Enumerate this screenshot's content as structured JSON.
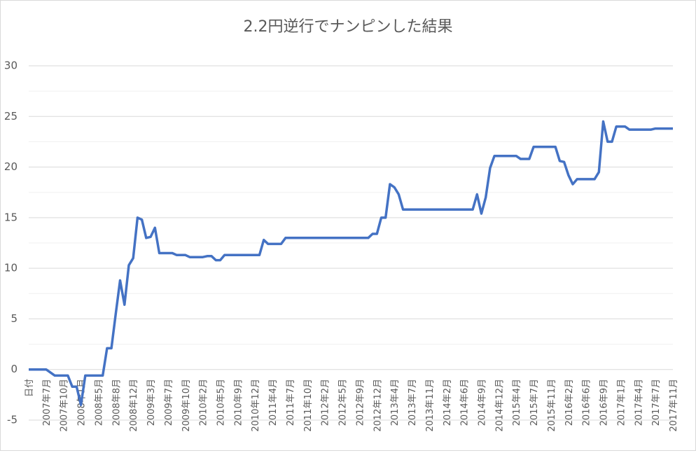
{
  "chart_data": {
    "type": "line",
    "title": "2.2円逆行でナンピンした結果",
    "categories": [
      "日付",
      null,
      null,
      null,
      "2007年7月",
      null,
      null,
      null,
      "2007年10月",
      null,
      null,
      null,
      "2008年1月",
      null,
      null,
      null,
      "2008年5月",
      null,
      null,
      null,
      "2008年8月",
      null,
      null,
      null,
      "2008年12月",
      null,
      null,
      null,
      "2009年3月",
      null,
      null,
      null,
      "2009年7月",
      null,
      null,
      null,
      "2009年10月",
      null,
      null,
      null,
      "2010年2月",
      null,
      null,
      null,
      "2010年5月",
      null,
      null,
      null,
      "2010年9月",
      null,
      null,
      null,
      "2010年12月",
      null,
      null,
      null,
      "2011年4月",
      null,
      null,
      null,
      "2011年7月",
      null,
      null,
      null,
      "2011年10月",
      null,
      null,
      null,
      "2012年2月",
      null,
      null,
      null,
      "2012年5月",
      null,
      null,
      null,
      "2012年9月",
      null,
      null,
      null,
      "2012年12月",
      null,
      null,
      null,
      "2013年4月",
      null,
      null,
      null,
      "2013年7月",
      null,
      null,
      null,
      "2013年11月",
      null,
      null,
      null,
      "2014年2月",
      null,
      null,
      null,
      "2014年6月",
      null,
      null,
      null,
      "2014年9月",
      null,
      null,
      null,
      "2014年12月",
      null,
      null,
      null,
      "2015年4月",
      null,
      null,
      null,
      "2015年7月",
      null,
      null,
      null,
      "2015年11月",
      null,
      null,
      null,
      "2016年2月",
      null,
      null,
      null,
      "2016年6月",
      null,
      null,
      null,
      "2016年9月",
      null,
      null,
      null,
      "2017年1月",
      null,
      null,
      null,
      "2017年4月",
      null,
      null,
      null,
      "2017年7月",
      null,
      null,
      null,
      "2017年11月"
    ],
    "series": [
      {
        "color": "#4472c4",
        "values": [
          0,
          0,
          0,
          0,
          0,
          -0.3,
          -0.6,
          -0.6,
          -0.6,
          -0.6,
          -1.7,
          -1.7,
          -3.5,
          -0.6,
          -0.6,
          -0.6,
          -0.6,
          -0.6,
          2.1,
          2.1,
          5.5,
          8.8,
          6.4,
          10.3,
          11,
          15,
          14.8,
          13,
          13.1,
          14,
          11.5,
          11.5,
          11.5,
          11.5,
          11.3,
          11.3,
          11.3,
          11.1,
          11.1,
          11.1,
          11.1,
          11.2,
          11.2,
          10.8,
          10.8,
          11.3,
          11.3,
          11.3,
          11.3,
          11.3,
          11.3,
          11.3,
          11.3,
          11.3,
          12.8,
          12.4,
          12.4,
          12.4,
          12.4,
          13,
          13,
          13,
          13,
          13,
          13,
          13,
          13,
          13,
          13,
          13,
          13,
          13,
          13,
          13,
          13,
          13,
          13,
          13,
          13,
          13.4,
          13.4,
          15,
          15,
          18.3,
          18,
          17.3,
          15.8,
          15.8,
          15.8,
          15.8,
          15.8,
          15.8,
          15.8,
          15.8,
          15.8,
          15.8,
          15.8,
          15.8,
          15.8,
          15.8,
          15.8,
          15.8,
          15.8,
          17.3,
          15.4,
          17,
          19.9,
          21.1,
          21.1,
          21.1,
          21.1,
          21.1,
          21.1,
          20.8,
          20.8,
          20.8,
          22,
          22,
          22,
          22,
          22,
          22,
          20.6,
          20.5,
          19.2,
          18.3,
          18.8,
          18.8,
          18.8,
          18.8,
          18.8,
          19.5,
          24.5,
          22.5,
          22.5,
          24,
          24,
          24,
          23.7,
          23.7,
          23.7,
          23.7,
          23.7,
          23.7,
          23.8,
          23.8,
          23.8,
          23.8,
          23.8
        ]
      }
    ],
    "ylim": [
      -5,
      30
    ],
    "yticks": [
      -5,
      0,
      5,
      10,
      15,
      20,
      25,
      30
    ],
    "minor_yticks": [
      2.5,
      7.5,
      12.5,
      17.5,
      22.5,
      27.5
    ],
    "grid": true
  }
}
